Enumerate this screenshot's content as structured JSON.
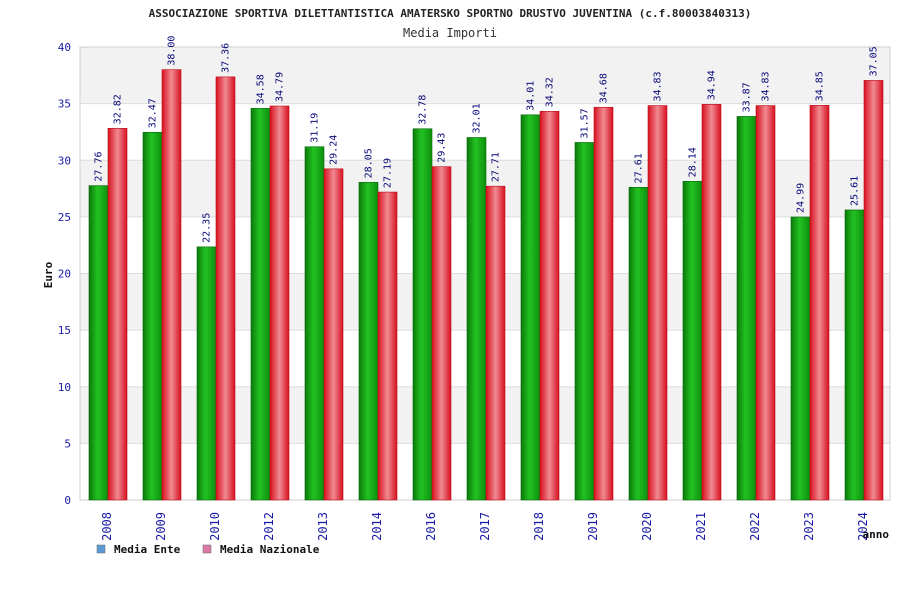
{
  "chart_data": {
    "type": "bar",
    "title": "ASSOCIAZIONE SPORTIVA DILETTANTISTICA AMATERSKO SPORTNO DRUSTVO JUVENTINA (c.f.80003840313)",
    "subtitle": "Media Importi",
    "xlabel": "anno",
    "ylabel": "Euro",
    "ylim": [
      0,
      40
    ],
    "yticks": [
      "0",
      "5",
      "10",
      "15",
      "20",
      "25",
      "30",
      "35",
      "40"
    ],
    "grid": true,
    "legend_position": "bottom-left",
    "categories": [
      "2008",
      "2009",
      "2010",
      "2012",
      "2013",
      "2014",
      "2016",
      "2017",
      "2018",
      "2019",
      "2020",
      "2021",
      "2022",
      "2023",
      "2024"
    ],
    "series": [
      {
        "name": "Media Ente",
        "color": "#1fb51f",
        "legend_color": "#5b9bd5",
        "values": [
          27.76,
          32.47,
          22.35,
          34.58,
          31.19,
          28.05,
          32.78,
          32.01,
          34.01,
          31.57,
          27.61,
          28.14,
          33.87,
          24.99,
          25.61
        ],
        "labels": [
          "27.76",
          "32.47",
          "22.35",
          "34.58",
          "31.19",
          "28.05",
          "32.78",
          "32.01",
          "34.01",
          "31.57",
          "27.61",
          "28.14",
          "33.87",
          "24.99",
          "25.61"
        ]
      },
      {
        "name": "Media Nazionale",
        "color": "#e8404a",
        "legend_color": "#d97aa8",
        "values": [
          32.82,
          38.0,
          37.36,
          34.79,
          29.24,
          27.19,
          29.43,
          27.71,
          34.32,
          34.68,
          34.83,
          34.94,
          34.83,
          34.85,
          37.05
        ],
        "labels": [
          "32.82",
          "38.00",
          "37.36",
          "34.79",
          "29.24",
          "27.19",
          "29.43",
          "27.71",
          "34.32",
          "34.68",
          "34.83",
          "34.94",
          "34.83",
          "34.85",
          "37.05"
        ]
      }
    ]
  }
}
